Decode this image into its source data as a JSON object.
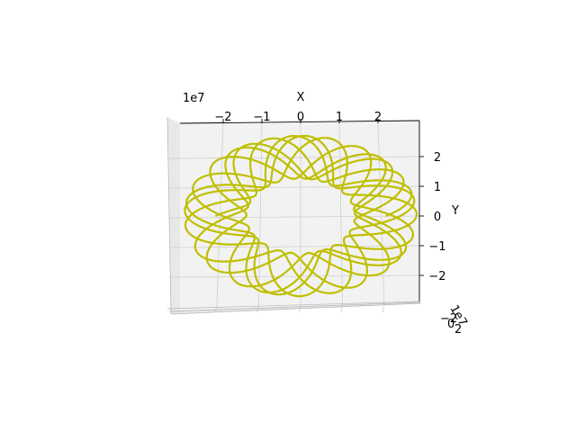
{
  "chart_data": {
    "type": "line",
    "projection": "3d",
    "view": "top-down (Z axis pointing toward viewer)",
    "title": "",
    "xlabel": "X",
    "ylabel": "Y",
    "zlabel": "",
    "x_offset_text": "1e7",
    "z_offset_text": "1e7",
    "x_ticks": [
      "−2",
      "−1",
      "0",
      "1",
      "2"
    ],
    "x_tick_values": [
      -2,
      -1,
      0,
      1,
      2
    ],
    "y_ticks": [
      "2",
      "1",
      "0",
      "−1",
      "−2"
    ],
    "y_tick_values": [
      2,
      1,
      0,
      -1,
      -2
    ],
    "z_ticks": [
      "−2",
      "0",
      "2"
    ],
    "xlim": [
      -3,
      3
    ],
    "ylim": [
      -3,
      3
    ],
    "grid": true,
    "legend": "none",
    "series": [
      {
        "color": "#bfbf00",
        "pattern": "rosette orbit",
        "radius_range": [
          1.4,
          3.0
        ],
        "loops": 30,
        "unit_scale": 10000000
      }
    ]
  }
}
